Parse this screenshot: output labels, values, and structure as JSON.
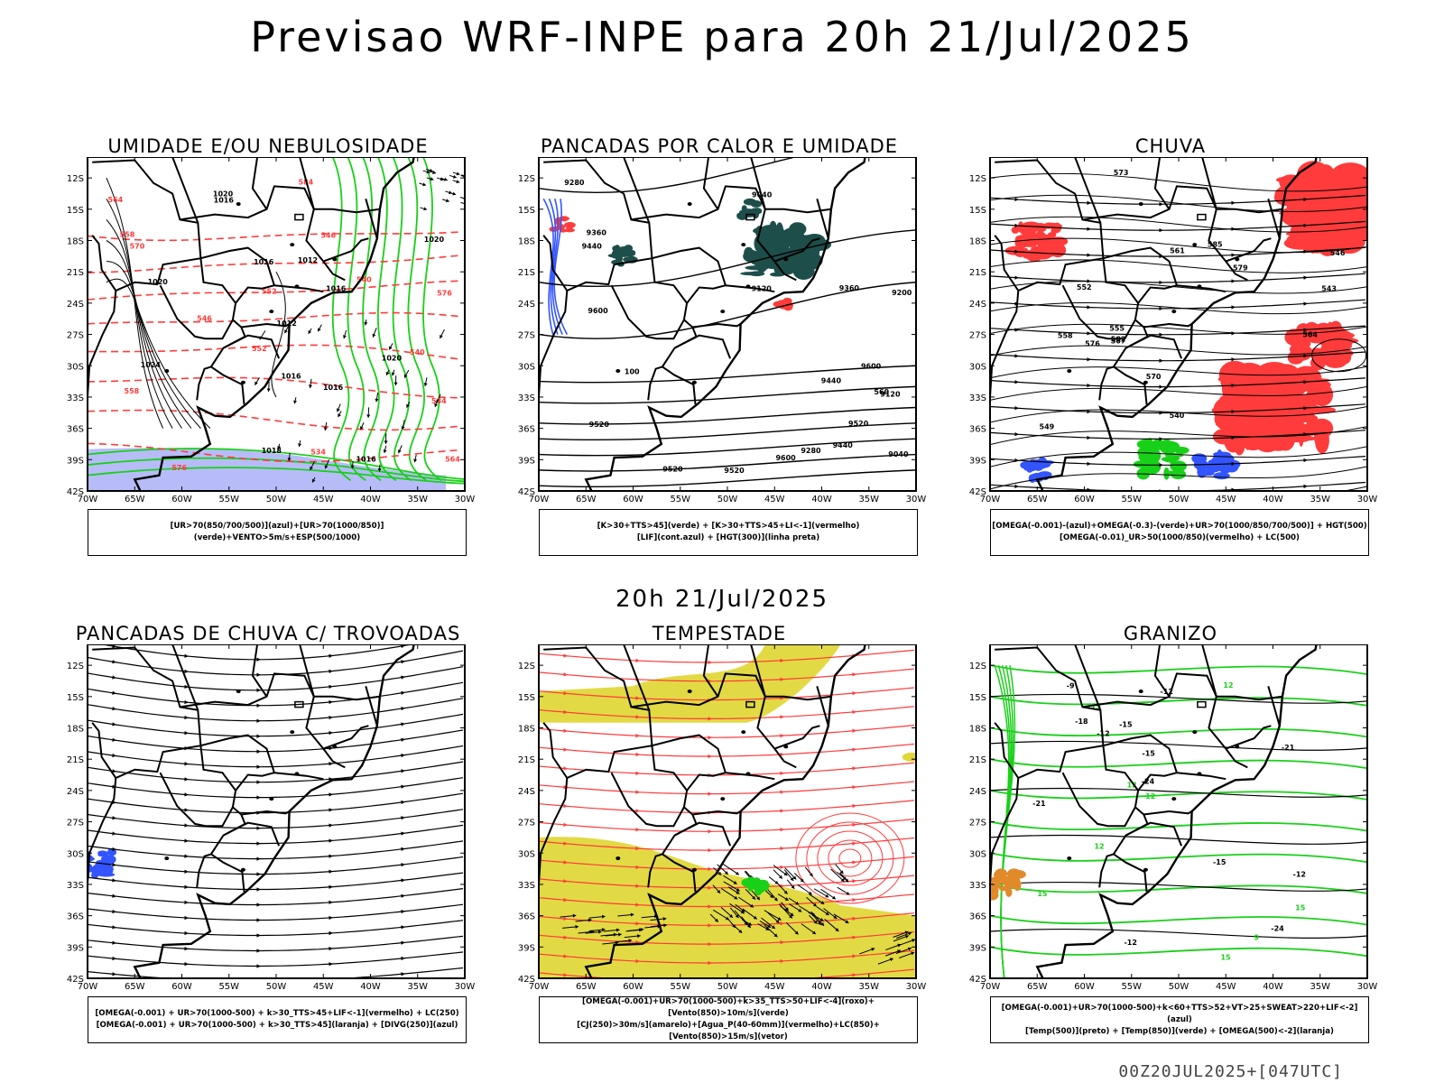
{
  "header": {
    "title": "Previsao WRF-INPE  para 20h 21/Jul/2025"
  },
  "mid_time": "20h 21/Jul/2025",
  "run_stamp": "00Z20JUL2025+[047UTC]",
  "axes": {
    "lat_labels": [
      "12S",
      "15S",
      "18S",
      "21S",
      "24S",
      "27S",
      "30S",
      "33S",
      "36S",
      "39S",
      "42S"
    ],
    "lon_labels": [
      "70W",
      "65W",
      "60W",
      "55W",
      "50W",
      "45W",
      "40W",
      "35W",
      "30W"
    ]
  },
  "panels": [
    {
      "id": "umidade",
      "title": "UMIDADE E/OU NEBULOSIDADE",
      "legend": [
        "[UR>70(850/700/500)](azul)+[UR>70(1000/850)](verde)+VENTO>5m/s+ESP(500/1000)"
      ],
      "contour_labels": [
        "1016",
        "1012",
        "1016",
        "1020",
        "1020",
        "1024",
        "1020",
        "1012",
        "1016",
        "1016",
        "1018",
        "1016",
        "1020",
        "1016",
        "570",
        "576",
        "564",
        "558",
        "552",
        "546",
        "540",
        "534",
        "546",
        "534",
        "540",
        "552",
        "584",
        "576",
        "564",
        "558"
      ]
    },
    {
      "id": "pancadas-calor",
      "title": "PANCADAS POR CALOR E UMIDADE",
      "legend": [
        "[K>30+TTS>45](verde) + [K>30+TTS>45+LI<-1](vermelho)",
        "[LIF](cont.azul) + [HGT(300)](linha preta)"
      ],
      "contour_labels": [
        "9600",
        "9600",
        "9600",
        "9520",
        "9520",
        "9520",
        "9520",
        "9440",
        "9440",
        "9440",
        "9360",
        "9360",
        "9280",
        "9280",
        "9200",
        "9120",
        "9120",
        "9040",
        "9040",
        "100",
        "560"
      ]
    },
    {
      "id": "chuva",
      "title": "CHUVA",
      "legend": [
        "[OMEGA(-0.001)-(azul)+OMEGA(-0.3)-(verde)+UR>70(1000/850/700/500)] + HGT(500)",
        "[OMEGA(-0.01)_UR>50(1000/850)(vermelho) + LC(500)"
      ],
      "contour_labels": [
        "585",
        "582",
        "579",
        "576",
        "573",
        "570",
        "567",
        "564",
        "561",
        "558",
        "555",
        "552",
        "549",
        "546",
        "543",
        "540"
      ]
    },
    {
      "id": "pancadas-trovoadas",
      "title": "PANCADAS DE CHUVA C/ TROVOADAS",
      "legend": [
        "[OMEGA(-0.001) + UR>70(1000-500) + k>30_TTS>45+LIF<-1](vermelho) + LC(250)",
        "[OMEGA(-0.001) + UR>70(1000-500) + k>30_TTS>45](laranja) + [DIVG(250)](azul)"
      ],
      "contour_labels": []
    },
    {
      "id": "tempestade",
      "title": "TEMPESTADE",
      "legend": [
        "[OMEGA(-0.001)+UR>70(1000-500)+k>35_TTS>50+LIF<-4](roxo)+[Vento(850)>10m/s](verde)",
        "[CJ(250)>30m/s](amarelo)+[Agua_P(40-60mm)](vermelho)+LC(850)+[Vento(850)>15m/s](vetor)"
      ],
      "contour_labels": []
    },
    {
      "id": "granizo",
      "title": "GRANIZO",
      "legend": [
        "[OMEGA(-0.001)+UR>70(1000-500)+k<60+TTS>52+VT>25+SWEAT>220+LIF<-2](azul)",
        "[Temp(500)](preto) + [Temp(850)](verde) + [OMEGA(500)<-2](laranja)"
      ],
      "contour_labels": [
        "-9",
        "-12",
        "-12",
        "-12",
        "-12",
        "-15",
        "-15",
        "-15",
        "-18",
        "-21",
        "-21",
        "-24",
        "-24",
        "12",
        "15",
        "15",
        "12",
        "15",
        "12",
        "9",
        "12",
        "15"
      ]
    }
  ],
  "colors": {
    "red": "#ff3b3b",
    "green": "#18d018",
    "blue": "#3355ff",
    "yellow": "#e0d83a",
    "darkteal": "#1e4e4a",
    "lavender": "#aab0f8",
    "orange": "#e08a2a"
  }
}
